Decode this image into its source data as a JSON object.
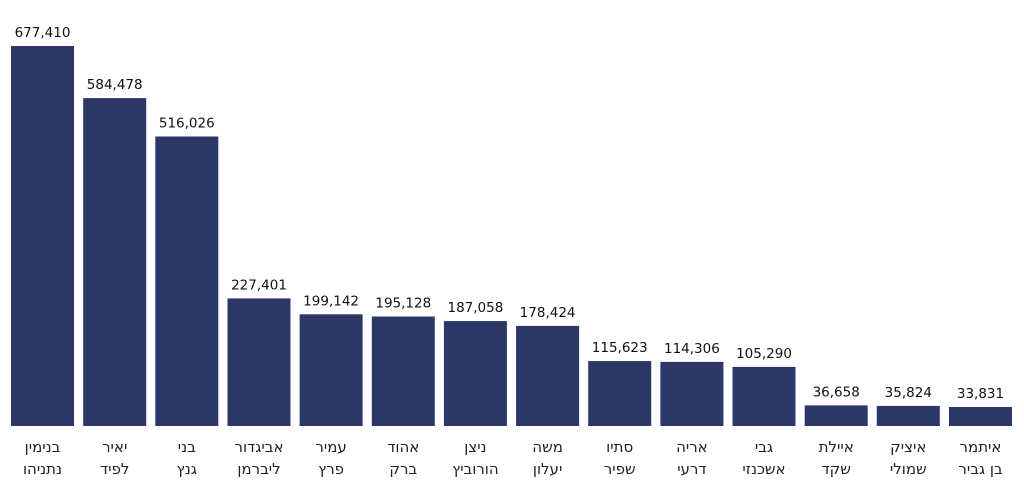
{
  "chart_data": {
    "type": "bar",
    "title": "",
    "xlabel": "",
    "ylabel": "",
    "ylim": [
      0,
      700000
    ],
    "grid": false,
    "legend": "none",
    "bar_color": "#2c3667",
    "categories": [
      [
        "בנימין",
        "נתניהו"
      ],
      [
        "יאיר",
        "לפיד"
      ],
      [
        "בני",
        "גנץ"
      ],
      [
        "אביגדור",
        "ליברמן"
      ],
      [
        "עמיר",
        "פרץ"
      ],
      [
        "אהוד",
        "ברק"
      ],
      [
        "ניצן",
        "הורוביץ"
      ],
      [
        "משה",
        "יעלון"
      ],
      [
        "סתיו",
        "שפיר"
      ],
      [
        "אריה",
        "דרעי"
      ],
      [
        "גבי",
        "אשכנזי"
      ],
      [
        "איילת",
        "שקד"
      ],
      [
        "איציק",
        "שמולי"
      ],
      [
        "איתמר",
        "בן גביר"
      ]
    ],
    "values": [
      677410,
      584478,
      516026,
      227401,
      199142,
      195128,
      187058,
      178424,
      115623,
      114306,
      105290,
      36658,
      35824,
      33831
    ],
    "value_labels": [
      "677,410",
      "584,478",
      "516,026",
      "227,401",
      "199,142",
      "195,128",
      "187,058",
      "178,424",
      "115,623",
      "114,306",
      "105,290",
      "36,658",
      "35,824",
      "33,831"
    ]
  }
}
